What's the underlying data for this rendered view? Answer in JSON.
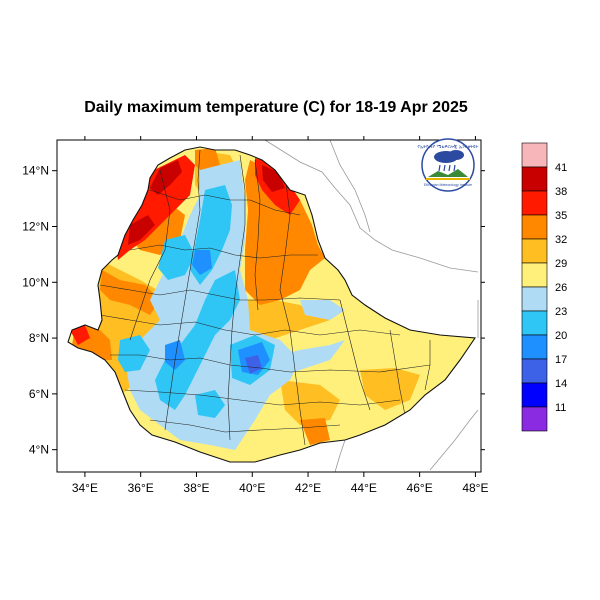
{
  "title": "Daily maximum temperature (C) for 18-19 Apr 2025",
  "map": {
    "lon_ticks": [
      "34°E",
      "36°E",
      "38°E",
      "40°E",
      "42°E",
      "44°E",
      "46°E",
      "48°E"
    ],
    "lat_ticks": [
      "14°N",
      "12°N",
      "10°N",
      "8°N",
      "6°N",
      "4°N"
    ],
    "lon_range": [
      33,
      48.2
    ],
    "lat_range": [
      3.2,
      15.1
    ]
  },
  "logo": {
    "text_amharic": "የኢትዮጵያ ሜቴዎሮሎጂ ኢንስቲትዩት",
    "text_english": "Ethiopian Meteorology Institute"
  },
  "colorbar": {
    "labels": [
      "41",
      "38",
      "35",
      "32",
      "29",
      "26",
      "23",
      "20",
      "17",
      "14",
      "11"
    ],
    "colors": [
      "#f7b6b9",
      "#c80000",
      "#ff1a00",
      "#ff8800",
      "#ffbe22",
      "#fff07c",
      "#afdcf4",
      "#2fc6f5",
      "#1e90ff",
      "#3d62e8",
      "#0000ff",
      "#8a2be2"
    ]
  }
}
